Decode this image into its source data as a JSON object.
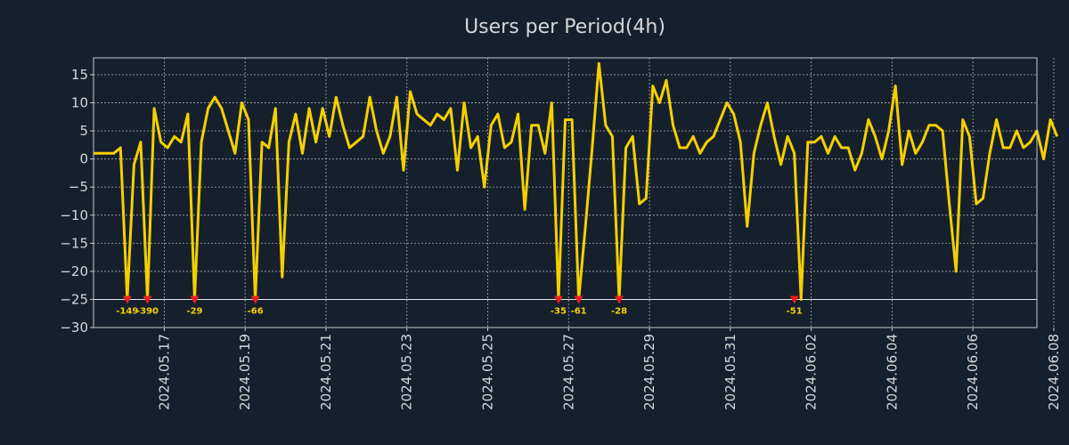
{
  "chart_data": {
    "type": "line",
    "title": "Users per Period(4h)",
    "xlabel": "",
    "ylabel": "",
    "ylim": [
      -30,
      18
    ],
    "y_ticks": [
      15,
      10,
      5,
      0,
      -5,
      -10,
      -15,
      -20,
      -25,
      -30
    ],
    "x_range_index": [
      0,
      140
    ],
    "x_ticks": [
      {
        "index": 10.5,
        "label": "2024.05.17"
      },
      {
        "index": 22.5,
        "label": "2024.05.19"
      },
      {
        "index": 34.5,
        "label": "2024.05.21"
      },
      {
        "index": 46.5,
        "label": "2024.05.23"
      },
      {
        "index": 58.5,
        "label": "2024.05.25"
      },
      {
        "index": 70.5,
        "label": "2024.05.27"
      },
      {
        "index": 82.5,
        "label": "2024.05.29"
      },
      {
        "index": 94.5,
        "label": "2024.05.31"
      },
      {
        "index": 106.5,
        "label": "2024.06.02"
      },
      {
        "index": 118.5,
        "label": "2024.06.04"
      },
      {
        "index": 130.5,
        "label": "2024.06.06"
      },
      {
        "index": 142.5,
        "label": "2024.06.08"
      }
    ],
    "clip_floor": -25,
    "series": [
      {
        "name": "Users",
        "color": "#f5d000",
        "values": [
          1,
          1,
          1,
          1,
          2,
          -25,
          -1,
          3,
          -25,
          9,
          3,
          2,
          4,
          3,
          8,
          -25,
          3,
          9,
          11,
          9,
          5,
          1,
          10,
          7,
          -25,
          3,
          2,
          9,
          -21,
          3,
          8,
          1,
          9,
          3,
          9,
          4,
          11,
          6,
          2,
          3,
          4,
          11,
          5,
          1,
          4,
          11,
          -2,
          12,
          8,
          7,
          6,
          8,
          7,
          9,
          -2,
          10,
          2,
          4,
          -5,
          6,
          8,
          2,
          3,
          8,
          -9,
          6,
          6,
          1,
          10,
          -25,
          7,
          7,
          -25,
          -12,
          2,
          17,
          6,
          4,
          -25,
          2,
          4,
          -8,
          -7,
          13,
          10,
          14,
          6,
          2,
          2,
          4,
          1,
          3,
          4,
          7,
          10,
          8,
          3,
          -12,
          1,
          6,
          10,
          4,
          -1,
          4,
          1,
          -25,
          3,
          3,
          4,
          1,
          4,
          2,
          2,
          -2,
          1,
          7,
          4,
          0,
          5,
          13,
          -1,
          5,
          1,
          3,
          6,
          6,
          5,
          -8,
          -20,
          7,
          4,
          -8,
          -7,
          1,
          7,
          2,
          2,
          5,
          2,
          3,
          5,
          0,
          7,
          4
        ]
      }
    ],
    "clip_annotations": [
      {
        "index": 5,
        "label": "-149"
      },
      {
        "index": 8,
        "label": "-390"
      },
      {
        "index": 15,
        "label": "-29"
      },
      {
        "index": 24,
        "label": "-66"
      },
      {
        "index": 69,
        "label": "-35"
      },
      {
        "index": 72,
        "label": "-61"
      },
      {
        "index": 78,
        "label": "-28"
      },
      {
        "index": 104,
        "label": "-51"
      }
    ]
  }
}
